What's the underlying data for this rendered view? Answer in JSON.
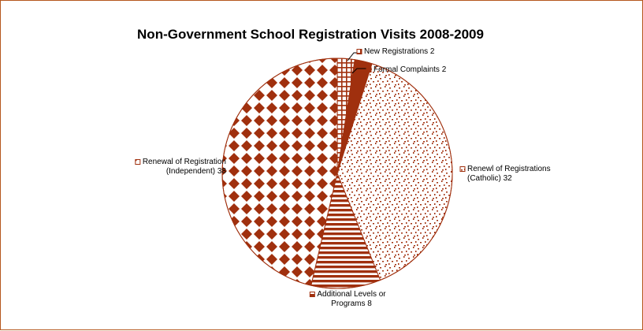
{
  "chart_data": {
    "type": "pie",
    "title": "Non-Government School Registration Visits 2008-2009",
    "colors": {
      "pattern": "#a0300e",
      "border": "#b5571d",
      "background": "#ffffff"
    },
    "slices": [
      {
        "label": "New Registrations",
        "value": 2,
        "label_lines": [
          "New Registrations  2"
        ],
        "pattern": "grid"
      },
      {
        "label": "Formal Complaints",
        "value": 2,
        "label_lines": [
          "Formal Complaints  2"
        ],
        "pattern": "solid"
      },
      {
        "label": "Renewl of Registrations (Catholic)",
        "value": 32,
        "label_lines": [
          "Renewl of Registrations",
          "(Catholic)  32"
        ],
        "pattern": "confetti"
      },
      {
        "label": "Additional Levels or Programs",
        "value": 8,
        "label_lines": [
          "Additional Levels or",
          "Programs  8"
        ],
        "pattern": "horizontal-stripes"
      },
      {
        "label": "Renewal of Registration (Independent)",
        "value": 38,
        "label_lines": [
          "Renewal of Registration",
          "(Independent)  38"
        ],
        "pattern": "diamonds"
      }
    ]
  }
}
